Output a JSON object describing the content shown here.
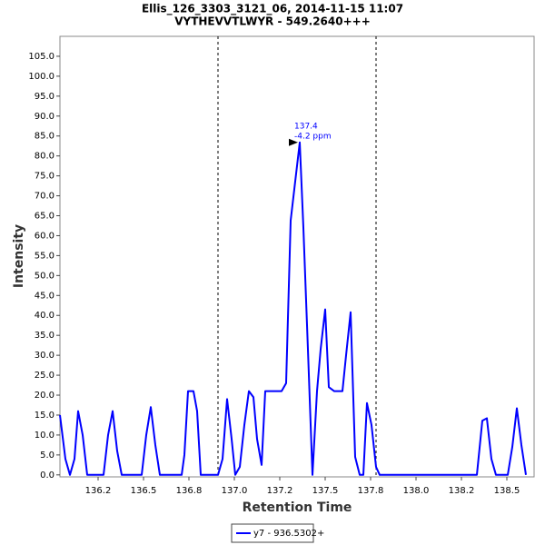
{
  "chart_data": {
    "type": "line",
    "title": "Ellis_126_3303_3121_06, 2014-11-15 11:07",
    "subtitle": "VYTHEVVTLWYR - 549.2640+++",
    "x_label": "Retention Time",
    "y_label": "Intensity",
    "x": [
      136.04,
      136.07,
      136.095,
      136.12,
      136.14,
      136.165,
      136.19,
      136.28,
      136.305,
      136.33,
      136.355,
      136.38,
      136.49,
      136.515,
      136.54,
      136.565,
      136.59,
      136.71,
      136.725,
      136.745,
      136.775,
      136.795,
      136.815,
      136.91,
      136.935,
      136.96,
      136.985,
      137.005,
      137.03,
      137.055,
      137.08,
      137.105,
      137.125,
      137.15,
      137.17,
      137.26,
      137.285,
      137.31,
      137.36,
      137.38,
      137.405,
      137.43,
      137.455,
      137.475,
      137.5,
      137.52,
      137.55,
      137.595,
      137.615,
      137.64,
      137.665,
      137.69,
      137.71,
      137.73,
      137.755,
      137.78,
      137.8,
      138.335,
      138.365,
      138.39,
      138.415,
      138.44,
      138.505,
      138.53,
      138.555,
      138.58,
      138.605
    ],
    "series": [
      {
        "name": "y7 - 936.5302+",
        "color": "#0000ff",
        "values": [
          15,
          4,
          0,
          4,
          16,
          10,
          0,
          0,
          10,
          16,
          6,
          0,
          0,
          10,
          17,
          7.5,
          0,
          0,
          5,
          21,
          21,
          16,
          0,
          0,
          4,
          19,
          9,
          0,
          2,
          12.5,
          21,
          19.5,
          9,
          2.5,
          21,
          21,
          23,
          63.8,
          83.4,
          62,
          31.5,
          0,
          21,
          31.5,
          41.5,
          22,
          21,
          21,
          30,
          40.8,
          4.5,
          0,
          0,
          18,
          12.5,
          2,
          0,
          0,
          13.6,
          14.2,
          4,
          0,
          0,
          7,
          16.7,
          7.5,
          0
        ]
      }
    ],
    "annotation": [
      "137.4",
      "-4.2 ppm"
    ],
    "markers": [
      136.91,
      137.78
    ],
    "xlim": [
      136.04,
      138.65
    ],
    "ylim": [
      -0.5,
      110
    ],
    "xticks": [
      {
        "value": 136.25,
        "label": "136.2"
      },
      {
        "value": 136.5,
        "label": "136.5"
      },
      {
        "value": 136.75,
        "label": "136.8"
      },
      {
        "value": 137.0,
        "label": "137.0"
      },
      {
        "value": 137.25,
        "label": "137.2"
      },
      {
        "value": 137.5,
        "label": "137.5"
      },
      {
        "value": 137.75,
        "label": "137.8"
      },
      {
        "value": 138.0,
        "label": "138.0"
      },
      {
        "value": 138.25,
        "label": "138.2"
      },
      {
        "value": 138.5,
        "label": "138.5"
      }
    ],
    "yticks": [
      {
        "value": 0,
        "label": "0.0"
      },
      {
        "value": 5,
        "label": "5.0"
      },
      {
        "value": 10,
        "label": "10.0"
      },
      {
        "value": 15,
        "label": "15.0"
      },
      {
        "value": 20,
        "label": "20.0"
      },
      {
        "value": 25,
        "label": "25.0"
      },
      {
        "value": 30,
        "label": "30.0"
      },
      {
        "value": 35,
        "label": "35.0"
      },
      {
        "value": 40,
        "label": "40.0"
      },
      {
        "value": 45,
        "label": "45.0"
      },
      {
        "value": 50,
        "label": "50.0"
      },
      {
        "value": 55,
        "label": "55.0"
      },
      {
        "value": 60,
        "label": "60.0"
      },
      {
        "value": 65,
        "label": "65.0"
      },
      {
        "value": 70,
        "label": "70.0"
      },
      {
        "value": 75,
        "label": "75.0"
      },
      {
        "value": 80,
        "label": "80.0"
      },
      {
        "value": 85,
        "label": "85.0"
      },
      {
        "value": 90,
        "label": "90.0"
      },
      {
        "value": 95,
        "label": "95.0"
      },
      {
        "value": 100,
        "label": "100.0"
      },
      {
        "value": 105,
        "label": "105.0"
      }
    ]
  }
}
